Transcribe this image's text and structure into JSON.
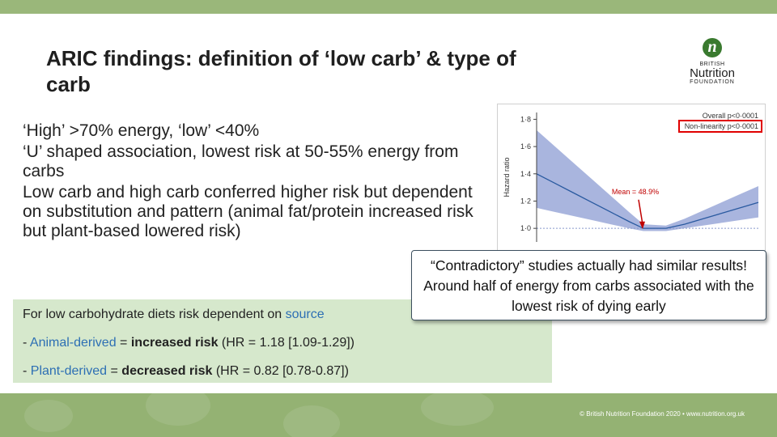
{
  "slide": {
    "title": "ARIC findings: definition of ‘low carb’ & type of carb",
    "bullets": [
      "‘High’ >70% energy, ‘low’ <40%",
      "‘U’ shaped association, lowest risk at 50-55% energy from carbs",
      "Low carb and high carb conferred higher risk but dependent on substitution and pattern (animal fat/protein increased risk but plant-based lowered risk)"
    ],
    "box": {
      "line1_prefix": "For low carbohydrate diets risk dependent on ",
      "line1_highlight": "source",
      "line2_dash": "- ",
      "line2_src": "Animal-derived",
      "line2_eq": " = ",
      "line2_bold": "increased risk",
      "line2_rest": " (HR = 1.18 [1.09-1.29])",
      "line3_dash": "- ",
      "line3_src": "Plant-derived",
      "line3_eq": " = ",
      "line3_bold": "decreased risk",
      "line3_rest": " (HR = 0.82 [0.78-0.87])"
    },
    "callout": "“Contradictory” studies actually had similar results! Around half of energy from carbs associated with the lowest risk of dying early"
  },
  "logo": {
    "mark": "n",
    "line1": "BRITISH",
    "line2": "Nutrition",
    "line3": "FOUNDATION"
  },
  "footer": "© British Nutrition Foundation 2020  •  www.nutrition.org.uk",
  "chart_data": {
    "type": "line",
    "ylabel": "Hazard ratio",
    "ylim": [
      0.9,
      1.85
    ],
    "y_ticks": [
      1.0,
      1.2,
      1.4,
      1.6,
      1.8
    ],
    "y_tick_labels": [
      "1·0",
      "1·2",
      "1·4",
      "1·6",
      "1·8"
    ],
    "x": [
      20,
      25,
      30,
      35,
      40,
      45,
      48.9,
      55,
      60,
      65,
      70,
      75,
      80
    ],
    "xlim": [
      20,
      80
    ],
    "series": [
      {
        "values": [
          1.4,
          1.33,
          1.26,
          1.19,
          1.12,
          1.05,
          1.0,
          1.0,
          1.03,
          1.07,
          1.11,
          1.15,
          1.19
        ],
        "lower": [
          1.15,
          1.12,
          1.09,
          1.06,
          1.03,
          1.0,
          0.98,
          0.98,
          1.0,
          1.02,
          1.04,
          1.06,
          1.08
        ],
        "upper": [
          1.72,
          1.6,
          1.48,
          1.36,
          1.24,
          1.12,
          1.03,
          1.02,
          1.07,
          1.13,
          1.19,
          1.25,
          1.31
        ]
      }
    ],
    "annotations": [
      {
        "text": "Mean = 48.9%",
        "x": 48.9
      }
    ],
    "stats": [
      "Overall p<0·0001",
      "Non-linearity p<0·0001"
    ],
    "colors": {
      "line": "#2a5aa0",
      "band": "#9aa8d8",
      "arrow": "#c00000",
      "highlight_box": "#e00000",
      "ref_line": "#8899cc"
    }
  }
}
